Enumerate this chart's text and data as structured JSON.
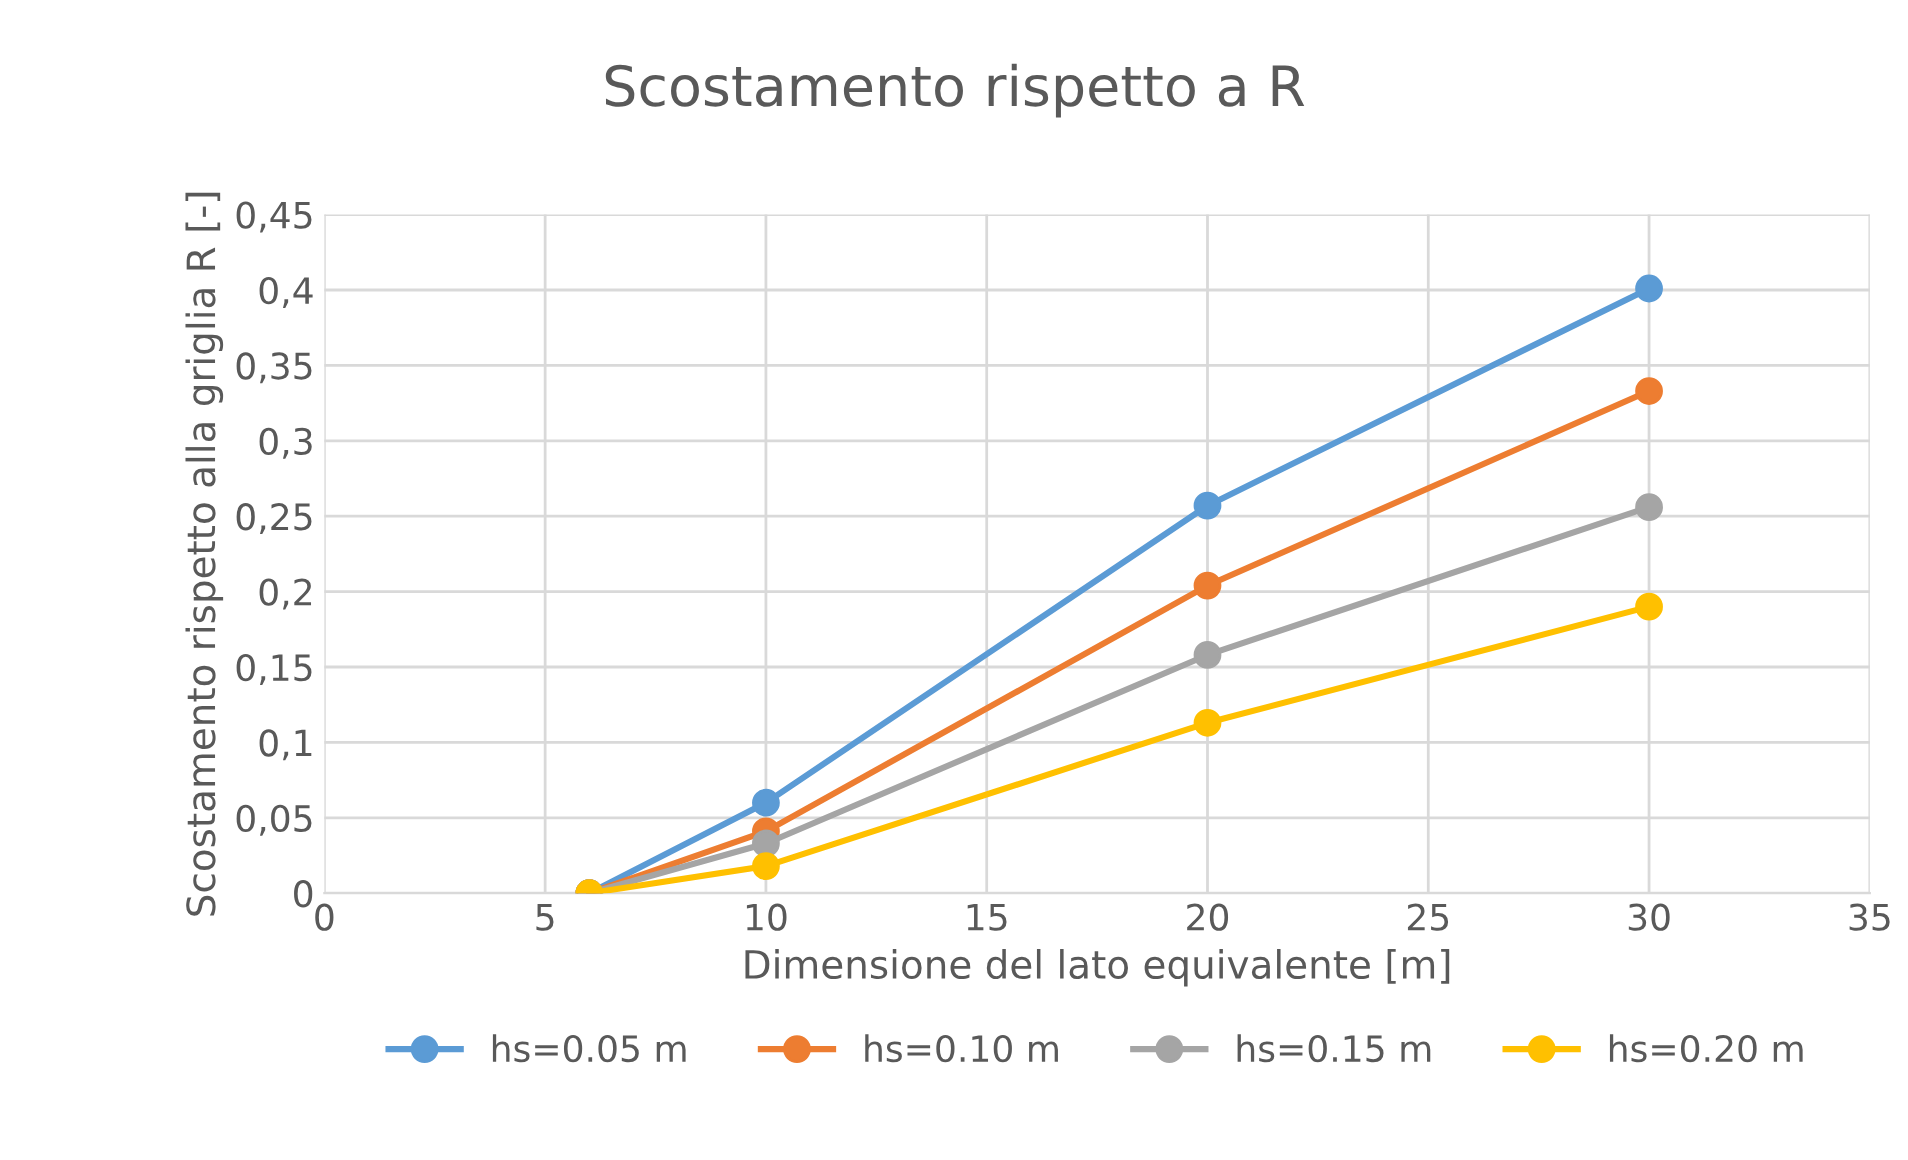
{
  "chart_data": {
    "type": "line",
    "title": "Scostamento rispetto a R",
    "xlabel": "Dimensione del lato equivalente [m]",
    "ylabel": "Scostamento rispetto alla griglia R [-]",
    "x": [
      6,
      10,
      20,
      30
    ],
    "series": [
      {
        "name": "hs=0.05 m",
        "color": "#5b9bd5",
        "values": [
          0,
          0.06,
          0.257,
          0.401
        ]
      },
      {
        "name": "hs=0.10 m",
        "color": "#ed7d31",
        "values": [
          0,
          0.041,
          0.204,
          0.333
        ]
      },
      {
        "name": "hs=0.15 m",
        "color": "#a5a5a5",
        "values": [
          0,
          0.033,
          0.158,
          0.256
        ]
      },
      {
        "name": "hs=0.20 m",
        "color": "#ffc000",
        "values": [
          0,
          0.018,
          0.113,
          0.19
        ]
      }
    ],
    "xlim": [
      0,
      35
    ],
    "xticks": [
      0,
      5,
      10,
      15,
      20,
      25,
      30,
      35
    ],
    "ylim": [
      0,
      0.45
    ],
    "yticks": [
      0,
      {
        "value": 0.05,
        "label": "0,05"
      },
      {
        "value": 0.1,
        "label": "0,1"
      },
      {
        "value": 0.15,
        "label": "0,15"
      },
      {
        "value": 0.2,
        "label": "0,2"
      },
      {
        "value": 0.25,
        "label": "0,25"
      },
      {
        "value": 0.3,
        "label": "0,3"
      },
      {
        "value": 0.35,
        "label": "0,35"
      },
      {
        "value": 0.4,
        "label": "0,4"
      },
      {
        "value": 0.45,
        "label": "0,45"
      }
    ],
    "grid": true,
    "legend": "bottom",
    "marker": "circle",
    "line_style": "solid"
  }
}
